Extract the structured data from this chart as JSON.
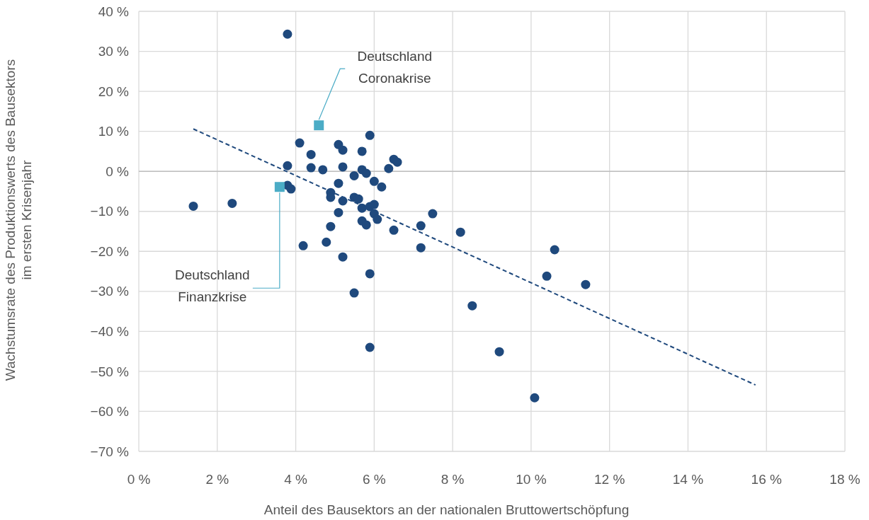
{
  "chart_data": {
    "type": "scatter",
    "xlabel": "Anteil des Bausektors an der nationalen Bruttowertschöpfung",
    "ylabel": "Wachstumsrate des Produktionswerts des Bausektors\nim ersten Krisenjahr",
    "xlim": [
      0,
      18
    ],
    "ylim": [
      -70,
      40
    ],
    "xticks": [
      {
        "value": 0,
        "label": "0 %"
      },
      {
        "value": 2,
        "label": "2 %"
      },
      {
        "value": 4,
        "label": "4 %"
      },
      {
        "value": 6,
        "label": "6 %"
      },
      {
        "value": 8,
        "label": "8 %"
      },
      {
        "value": 10,
        "label": "10 %"
      },
      {
        "value": 12,
        "label": "12 %"
      },
      {
        "value": 14,
        "label": "14 %"
      },
      {
        "value": 16,
        "label": "16 %"
      },
      {
        "value": 18,
        "label": "18 %"
      }
    ],
    "yticks": [
      {
        "value": -70,
        "label": "−70 %"
      },
      {
        "value": -60,
        "label": "−60 %"
      },
      {
        "value": -50,
        "label": "−50 %"
      },
      {
        "value": -40,
        "label": "−40 %"
      },
      {
        "value": -30,
        "label": "−30 %"
      },
      {
        "value": -20,
        "label": "−20 %"
      },
      {
        "value": -10,
        "label": "−10 %"
      },
      {
        "value": 0,
        "label": "0 %"
      },
      {
        "value": 10,
        "label": "10 %"
      },
      {
        "value": 20,
        "label": "20 %"
      },
      {
        "value": 30,
        "label": "30 %"
      },
      {
        "value": 40,
        "label": "40 %"
      }
    ],
    "grid": true,
    "series": [
      {
        "type": "line",
        "color": "#1f497d",
        "line_style": "dashed",
        "marker": "none",
        "x": [
          1.39,
          15.72
        ],
        "values": [
          10.6,
          -53.4
        ]
      },
      {
        "color": "#1f497d",
        "marker": "circle",
        "x": [
          3.79,
          4.1,
          4.39,
          3.79,
          4.39,
          4.69,
          5.09,
          5.2,
          5.2,
          5.69,
          5.89,
          5.69,
          5.8,
          5.49,
          6.0,
          6.37,
          6.5,
          6.59,
          6.19,
          3.79,
          3.88,
          4.89,
          4.89,
          5.09,
          5.2,
          5.49,
          5.6,
          5.69,
          5.89,
          6.0,
          6.0,
          6.08,
          5.09,
          5.69,
          5.8,
          6.5,
          4.89,
          4.78,
          4.19,
          5.2,
          5.89,
          5.49,
          5.89,
          1.39,
          2.38,
          7.49,
          7.19,
          8.2,
          7.19,
          8.5,
          9.19,
          10.6,
          10.4,
          11.39,
          10.09
        ],
        "values": [
          34.3,
          7.1,
          4.2,
          1.4,
          0.9,
          0.4,
          6.7,
          5.3,
          1.1,
          5.0,
          9.0,
          0.4,
          -0.5,
          -1.1,
          -2.5,
          0.7,
          3.0,
          2.3,
          -3.9,
          -3.5,
          -4.4,
          -5.3,
          -6.5,
          -3.0,
          -7.4,
          -6.5,
          -6.9,
          -9.2,
          -8.8,
          -8.3,
          -10.6,
          -12.0,
          -10.3,
          -12.4,
          -13.4,
          -14.7,
          -13.8,
          -17.7,
          -18.6,
          -21.4,
          -25.6,
          -30.4,
          -44.0,
          -8.7,
          -8.0,
          -10.6,
          -13.6,
          -15.2,
          -19.1,
          -33.6,
          -45.1,
          -19.6,
          -26.2,
          -28.3,
          -56.6
        ]
      },
      {
        "color": "#4bacc6",
        "marker": "square",
        "x": [
          4.59,
          3.59
        ],
        "values": [
          11.5,
          -3.9
        ]
      }
    ],
    "annotations": [
      {
        "text": "Deutschland\nCoronakrise",
        "x": 4.59,
        "y": 11.5
      },
      {
        "text": "Deutschland\nFinanzkrise",
        "x": 3.59,
        "y": -3.9
      }
    ]
  }
}
